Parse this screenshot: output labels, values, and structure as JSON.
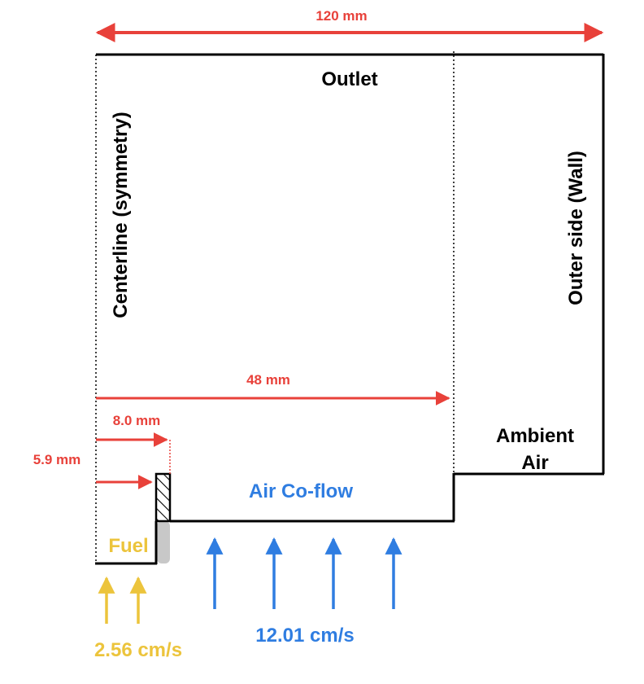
{
  "labels": {
    "outlet": "Outlet",
    "centerline": "Centerline (symmetry)",
    "outer_side": "Outer side (Wall)",
    "ambient_line1": "Ambient",
    "ambient_line2": "Air",
    "air_coflow": "Air Co-flow",
    "fuel": "Fuel"
  },
  "dimensions": {
    "overall_width": "120 mm",
    "coflow_width": "48 mm",
    "nozzle_outer_radius": "8.0 mm",
    "nozzle_inner_radius": "5.9 mm"
  },
  "velocities": {
    "fuel": "2.56 cm/s",
    "air": "12.01 cm/s"
  },
  "colors": {
    "dimension_red": "#e8413a",
    "air_blue": "#2f7de1",
    "fuel_yellow": "#ecc43c",
    "wall_black": "#000000",
    "nozzle_gray": "#c8c8c8"
  }
}
